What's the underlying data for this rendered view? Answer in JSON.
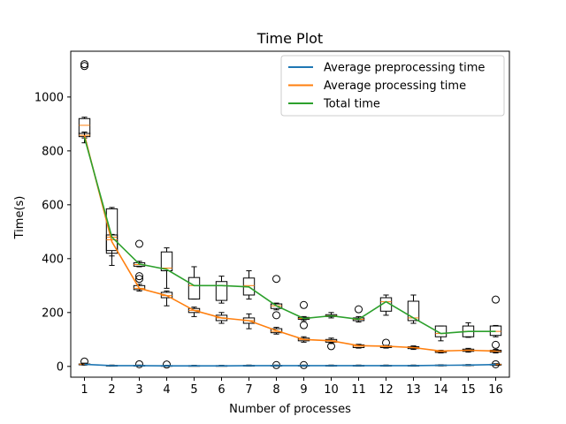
{
  "chart_data": {
    "type": "line",
    "title": "Time Plot",
    "xlabel": "Number of processes",
    "ylabel": "Time(s)",
    "x": [
      1,
      2,
      3,
      4,
      5,
      6,
      7,
      8,
      9,
      10,
      11,
      12,
      13,
      14,
      15,
      16
    ],
    "xlim": [
      0.5,
      16.5
    ],
    "ylim": [
      -40,
      1170
    ],
    "yticks": [
      0,
      200,
      400,
      600,
      800,
      1000
    ],
    "legend_position": "top-right",
    "grid": false,
    "series": [
      {
        "name": "Average preprocessing time",
        "color": "#1f77b4",
        "values": [
          8,
          3,
          3,
          2,
          2,
          2,
          3,
          3,
          3,
          3,
          3,
          3,
          3,
          4,
          5,
          7
        ]
      },
      {
        "name": "Average processing time",
        "color": "#ff7f0e",
        "values": [
          858,
          463,
          290,
          263,
          208,
          180,
          170,
          133,
          100,
          95,
          77,
          75,
          70,
          57,
          60,
          57
        ]
      },
      {
        "name": "Total time",
        "color": "#2ca02c",
        "values": [
          850,
          480,
          380,
          360,
          300,
          300,
          295,
          225,
          178,
          188,
          175,
          240,
          180,
          122,
          130,
          130
        ]
      }
    ],
    "boxplots": [
      {
        "series": "Average preprocessing time",
        "boxes": [
          {
            "x": 1,
            "whislo": 5,
            "q1": 6,
            "med": 8,
            "q3": 9,
            "whishi": 12,
            "fliers": [
              18
            ]
          },
          {
            "x": 2,
            "whislo": 1,
            "q1": 2,
            "med": 3,
            "q3": 4,
            "whishi": 5,
            "fliers": []
          },
          {
            "x": 3,
            "whislo": 1,
            "q1": 2,
            "med": 3,
            "q3": 4,
            "whishi": 5,
            "fliers": [
              8
            ]
          },
          {
            "x": 4,
            "whislo": 1,
            "q1": 2,
            "med": 2,
            "q3": 3,
            "whishi": 4,
            "fliers": [
              7
            ]
          },
          {
            "x": 5,
            "whislo": 1,
            "q1": 2,
            "med": 2,
            "q3": 3,
            "whishi": 4,
            "fliers": []
          },
          {
            "x": 6,
            "whislo": 1,
            "q1": 2,
            "med": 2,
            "q3": 3,
            "whishi": 4,
            "fliers": []
          },
          {
            "x": 7,
            "whislo": 1,
            "q1": 2,
            "med": 3,
            "q3": 4,
            "whishi": 5,
            "fliers": []
          },
          {
            "x": 8,
            "whislo": 1,
            "q1": 2,
            "med": 3,
            "q3": 4,
            "whishi": 5,
            "fliers": [
              5
            ]
          },
          {
            "x": 9,
            "whislo": 1,
            "q1": 2,
            "med": 3,
            "q3": 4,
            "whishi": 5,
            "fliers": [
              5
            ]
          },
          {
            "x": 10,
            "whislo": 1,
            "q1": 2,
            "med": 3,
            "q3": 4,
            "whishi": 5,
            "fliers": []
          },
          {
            "x": 11,
            "whislo": 1,
            "q1": 2,
            "med": 3,
            "q3": 4,
            "whishi": 5,
            "fliers": []
          },
          {
            "x": 12,
            "whislo": 1,
            "q1": 2,
            "med": 3,
            "q3": 4,
            "whishi": 5,
            "fliers": []
          },
          {
            "x": 13,
            "whislo": 1,
            "q1": 2,
            "med": 3,
            "q3": 4,
            "whishi": 5,
            "fliers": []
          },
          {
            "x": 14,
            "whislo": 2,
            "q1": 3,
            "med": 4,
            "q3": 5,
            "whishi": 6,
            "fliers": []
          },
          {
            "x": 15,
            "whislo": 3,
            "q1": 4,
            "med": 5,
            "q3": 6,
            "whishi": 7,
            "fliers": []
          },
          {
            "x": 16,
            "whislo": 4,
            "q1": 5,
            "med": 7,
            "q3": 8,
            "whishi": 10,
            "fliers": [
              8
            ]
          }
        ]
      },
      {
        "series": "Average processing time",
        "boxes": [
          {
            "x": 1,
            "whislo": 848,
            "q1": 853,
            "med": 858,
            "q3": 865,
            "whishi": 870,
            "fliers": []
          },
          {
            "x": 2,
            "whislo": 410,
            "q1": 420,
            "med": 480,
            "q3": 488,
            "whishi": 490,
            "fliers": []
          },
          {
            "x": 3,
            "whislo": 280,
            "q1": 285,
            "med": 290,
            "q3": 300,
            "whishi": 305,
            "fliers": []
          },
          {
            "x": 4,
            "whislo": 225,
            "q1": 255,
            "med": 263,
            "q3": 275,
            "whishi": 280,
            "fliers": []
          },
          {
            "x": 5,
            "whislo": 185,
            "q1": 200,
            "med": 208,
            "q3": 215,
            "whishi": 220,
            "fliers": []
          },
          {
            "x": 6,
            "whislo": 160,
            "q1": 170,
            "med": 180,
            "q3": 190,
            "whishi": 200,
            "fliers": []
          },
          {
            "x": 7,
            "whislo": 140,
            "q1": 160,
            "med": 170,
            "q3": 180,
            "whishi": 195,
            "fliers": []
          },
          {
            "x": 8,
            "whislo": 120,
            "q1": 125,
            "med": 130,
            "q3": 140,
            "whishi": 145,
            "fliers": []
          },
          {
            "x": 9,
            "whislo": 90,
            "q1": 95,
            "med": 100,
            "q3": 105,
            "whishi": 110,
            "fliers": []
          },
          {
            "x": 10,
            "whislo": 85,
            "q1": 90,
            "med": 95,
            "q3": 100,
            "whishi": 105,
            "fliers": [
              75
            ]
          },
          {
            "x": 11,
            "whislo": 68,
            "q1": 70,
            "med": 75,
            "q3": 80,
            "whishi": 82,
            "fliers": []
          },
          {
            "x": 12,
            "whislo": 68,
            "q1": 70,
            "med": 74,
            "q3": 76,
            "whishi": 78,
            "fliers": []
          },
          {
            "x": 13,
            "whislo": 63,
            "q1": 66,
            "med": 70,
            "q3": 73,
            "whishi": 76,
            "fliers": []
          },
          {
            "x": 14,
            "whislo": 50,
            "q1": 52,
            "med": 55,
            "q3": 58,
            "whishi": 60,
            "fliers": []
          },
          {
            "x": 15,
            "whislo": 53,
            "q1": 56,
            "med": 60,
            "q3": 64,
            "whishi": 67,
            "fliers": []
          },
          {
            "x": 16,
            "whislo": 50,
            "q1": 53,
            "med": 56,
            "q3": 60,
            "whishi": 63,
            "fliers": []
          }
        ]
      },
      {
        "series": "Total time",
        "boxes": [
          {
            "x": 1,
            "whislo": 830,
            "q1": 865,
            "med": 895,
            "q3": 920,
            "whishi": 925,
            "fliers": [
              1115,
              1122
            ]
          },
          {
            "x": 2,
            "whislo": 375,
            "q1": 430,
            "med": 470,
            "q3": 585,
            "whishi": 590,
            "fliers": []
          },
          {
            "x": 3,
            "whislo": 370,
            "q1": 372,
            "med": 378,
            "q3": 385,
            "whishi": 390,
            "fliers": [
              455,
              335,
              325
            ]
          },
          {
            "x": 4,
            "whislo": 290,
            "q1": 355,
            "med": 365,
            "q3": 425,
            "whishi": 440,
            "fliers": []
          },
          {
            "x": 5,
            "whislo": 250,
            "q1": 250,
            "med": 300,
            "q3": 330,
            "whishi": 370,
            "fliers": []
          },
          {
            "x": 6,
            "whislo": 235,
            "q1": 245,
            "med": 300,
            "q3": 315,
            "whishi": 335,
            "fliers": []
          },
          {
            "x": 7,
            "whislo": 250,
            "q1": 265,
            "med": 300,
            "q3": 328,
            "whishi": 355,
            "fliers": []
          },
          {
            "x": 8,
            "whislo": 210,
            "q1": 215,
            "med": 225,
            "q3": 232,
            "whishi": 235,
            "fliers": [
              325,
              190
            ]
          },
          {
            "x": 9,
            "whislo": 170,
            "q1": 175,
            "med": 178,
            "q3": 182,
            "whishi": 185,
            "fliers": [
              228,
              153
            ]
          },
          {
            "x": 10,
            "whislo": 180,
            "q1": 185,
            "med": 188,
            "q3": 192,
            "whishi": 200,
            "fliers": []
          },
          {
            "x": 11,
            "whislo": 165,
            "q1": 170,
            "med": 175,
            "q3": 180,
            "whishi": 185,
            "fliers": [
              212
            ]
          },
          {
            "x": 12,
            "whislo": 190,
            "q1": 205,
            "med": 240,
            "q3": 255,
            "whishi": 265,
            "fliers": [
              88
            ]
          },
          {
            "x": 13,
            "whislo": 160,
            "q1": 170,
            "med": 180,
            "q3": 242,
            "whishi": 265,
            "fliers": []
          },
          {
            "x": 14,
            "whislo": 95,
            "q1": 110,
            "med": 122,
            "q3": 150,
            "whishi": 150,
            "fliers": []
          },
          {
            "x": 15,
            "whislo": 108,
            "q1": 110,
            "med": 130,
            "q3": 150,
            "whishi": 162,
            "fliers": []
          },
          {
            "x": 16,
            "whislo": 110,
            "q1": 115,
            "med": 130,
            "q3": 150,
            "whishi": 152,
            "fliers": [
              248,
              80
            ]
          }
        ]
      }
    ]
  }
}
